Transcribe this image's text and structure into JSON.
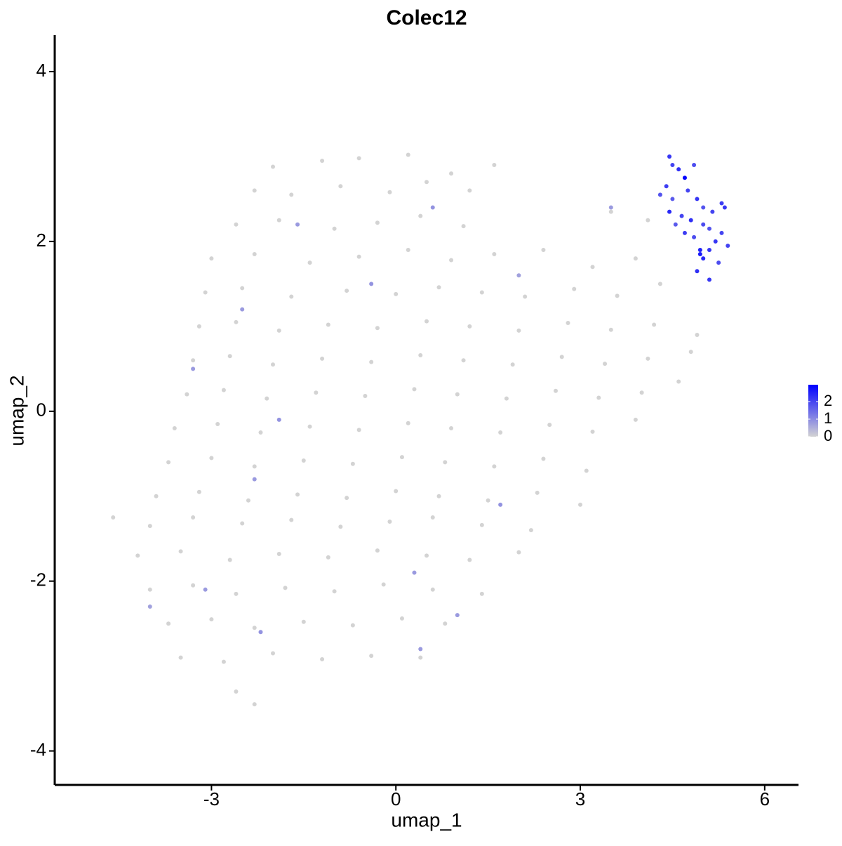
{
  "chart_data": {
    "type": "scatter",
    "title": "Colec12",
    "x_label": "umap_1",
    "y_label": "umap_2",
    "xlim": [
      -5.55,
      6.55
    ],
    "ylim": [
      -4.4,
      4.43
    ],
    "xticks": [
      -3,
      0,
      3,
      6
    ],
    "yticks": [
      -4,
      -2,
      0,
      2,
      4
    ],
    "color_low": "#d3d3d3",
    "color_high": "#0000ff",
    "color_lim": [
      0,
      2.96
    ],
    "color_ticks": [
      0,
      1,
      2
    ],
    "x": [
      -2.0,
      -1.2,
      -0.6,
      0.2,
      0.9,
      1.6,
      -2.3,
      -1.7,
      -0.9,
      -0.1,
      0.5,
      1.2,
      -2.6,
      -1.9,
      -1.0,
      -0.3,
      0.4,
      1.1,
      3.5,
      4.1,
      -3.0,
      -2.3,
      -1.4,
      -0.6,
      0.2,
      0.9,
      1.6,
      2.4,
      3.2,
      3.9,
      -3.1,
      -2.5,
      -1.7,
      -0.8,
      0.0,
      0.7,
      1.4,
      2.1,
      2.9,
      3.6,
      4.3,
      -3.2,
      -2.6,
      -1.9,
      -1.1,
      -0.3,
      0.5,
      1.2,
      2.0,
      2.8,
      3.5,
      4.2,
      4.9,
      -3.3,
      -2.7,
      -2.0,
      -1.2,
      -0.4,
      0.4,
      1.1,
      1.9,
      2.7,
      3.4,
      4.1,
      4.8,
      -3.4,
      -2.8,
      -2.1,
      -1.3,
      -0.5,
      0.3,
      1.0,
      1.8,
      2.6,
      3.3,
      4.0,
      4.6,
      -3.6,
      -2.9,
      -2.2,
      -1.4,
      -0.6,
      0.2,
      0.9,
      1.7,
      2.5,
      3.2,
      3.9,
      -3.7,
      -3.0,
      -2.3,
      -1.5,
      -0.7,
      0.1,
      0.8,
      1.6,
      2.4,
      3.1,
      -3.9,
      -3.2,
      -2.4,
      -1.6,
      -0.8,
      0.0,
      0.7,
      1.5,
      2.3,
      3.0,
      -4.6,
      -4.0,
      -3.3,
      -2.5,
      -1.7,
      -0.9,
      -0.1,
      0.6,
      1.4,
      2.2,
      -4.2,
      -3.5,
      -2.7,
      -1.9,
      -1.1,
      -0.3,
      0.5,
      1.2,
      2.0,
      -4.0,
      -3.3,
      -2.6,
      -1.8,
      -1.0,
      -0.2,
      0.6,
      1.4,
      -3.7,
      -3.0,
      -2.3,
      -1.5,
      -0.7,
      0.1,
      0.8,
      -3.5,
      -2.8,
      -2.0,
      -1.2,
      -0.4,
      0.4,
      -2.6,
      -2.3,
      -1.6,
      -0.4,
      -3.3,
      -1.9,
      0.3,
      -2.2,
      0.4,
      1.7,
      -2.3,
      2.0,
      1.0,
      -4.0,
      -2.5,
      0.6,
      3.5,
      -3.1,
      4.45,
      4.5,
      4.6,
      4.4,
      4.75,
      4.85,
      4.3,
      4.5,
      4.9,
      5.0,
      5.15,
      5.3,
      5.35,
      4.45,
      4.65,
      4.8,
      5.0,
      5.1,
      5.3,
      4.7,
      4.85,
      5.2,
      5.4,
      4.95,
      5.1,
      5.0,
      4.9,
      5.1,
      5.25,
      4.95,
      4.55,
      4.7
    ],
    "y": [
      2.88,
      2.95,
      2.98,
      3.02,
      2.8,
      2.9,
      2.6,
      2.55,
      2.65,
      2.58,
      2.7,
      2.6,
      2.2,
      2.25,
      2.15,
      2.22,
      2.3,
      2.18,
      2.35,
      2.25,
      1.8,
      1.85,
      1.75,
      1.82,
      1.9,
      1.78,
      1.85,
      1.9,
      1.7,
      1.8,
      1.4,
      1.45,
      1.35,
      1.42,
      1.38,
      1.46,
      1.4,
      1.35,
      1.44,
      1.36,
      1.5,
      1.0,
      1.05,
      0.95,
      1.02,
      0.98,
      1.06,
      1.0,
      0.95,
      1.04,
      0.96,
      1.02,
      0.9,
      0.6,
      0.65,
      0.55,
      0.62,
      0.58,
      0.66,
      0.6,
      0.55,
      0.64,
      0.56,
      0.62,
      0.7,
      0.2,
      0.25,
      0.15,
      0.22,
      0.18,
      0.26,
      0.2,
      0.15,
      0.24,
      0.16,
      0.22,
      0.35,
      -0.2,
      -0.15,
      -0.25,
      -0.18,
      -0.22,
      -0.14,
      -0.2,
      -0.25,
      -0.16,
      -0.24,
      -0.1,
      -0.6,
      -0.55,
      -0.65,
      -0.58,
      -0.62,
      -0.54,
      -0.6,
      -0.65,
      -0.56,
      -0.7,
      -1.0,
      -0.95,
      -1.05,
      -0.98,
      -1.02,
      -0.94,
      -1.0,
      -1.05,
      -0.96,
      -1.1,
      -1.25,
      -1.35,
      -1.25,
      -1.32,
      -1.28,
      -1.36,
      -1.3,
      -1.25,
      -1.34,
      -1.4,
      -1.7,
      -1.65,
      -1.75,
      -1.68,
      -1.72,
      -1.64,
      -1.7,
      -1.75,
      -1.66,
      -2.1,
      -2.05,
      -2.15,
      -2.08,
      -2.12,
      -2.04,
      -2.1,
      -2.15,
      -2.5,
      -2.45,
      -2.55,
      -2.48,
      -2.52,
      -2.44,
      -2.5,
      -2.9,
      -2.95,
      -2.85,
      -2.92,
      -2.88,
      -2.9,
      -3.3,
      -3.45,
      2.2,
      1.5,
      0.5,
      -0.1,
      -1.9,
      -2.6,
      -2.8,
      -1.1,
      -0.8,
      1.6,
      -2.4,
      -2.3,
      1.2,
      2.4,
      2.4,
      -2.1,
      3.0,
      2.9,
      2.85,
      2.65,
      2.6,
      2.9,
      2.55,
      2.5,
      2.5,
      2.4,
      2.35,
      2.45,
      2.4,
      2.35,
      2.3,
      2.25,
      2.2,
      2.15,
      2.1,
      2.1,
      2.05,
      2.0,
      1.95,
      1.9,
      1.9,
      1.8,
      1.65,
      1.55,
      1.75,
      1.85,
      2.2,
      2.75
    ],
    "values": [
      0,
      0,
      0,
      0,
      0,
      0,
      0,
      0,
      0,
      0,
      0,
      0,
      0,
      0,
      0,
      0,
      0,
      0,
      0,
      0,
      0,
      0,
      0,
      0,
      0,
      0,
      0,
      0,
      0,
      0,
      0,
      0,
      0,
      0,
      0,
      0,
      0,
      0,
      0,
      0,
      0,
      0,
      0,
      0,
      0,
      0,
      0,
      0,
      0,
      0,
      0,
      0,
      0,
      0,
      0,
      0,
      0,
      0,
      0,
      0,
      0,
      0,
      0,
      0,
      0,
      0,
      0,
      0,
      0,
      0,
      0,
      0,
      0,
      0,
      0,
      0,
      0,
      0,
      0,
      0,
      0,
      0,
      0,
      0,
      0,
      0,
      0,
      0,
      0,
      0,
      0,
      0,
      0,
      0,
      0,
      0,
      0,
      0,
      0,
      0,
      0,
      0,
      0,
      0,
      0,
      0,
      0,
      0,
      0,
      0,
      0,
      0,
      0,
      0,
      0,
      0,
      0,
      0,
      0,
      0,
      0,
      0,
      0,
      0,
      0,
      0,
      0,
      0,
      0,
      0,
      0,
      0,
      0,
      0,
      0,
      0,
      0,
      0,
      0,
      0,
      0,
      0,
      0,
      0,
      0,
      0,
      0,
      0,
      0,
      0,
      0.8,
      0.9,
      0.8,
      0.9,
      0.8,
      0.9,
      0.8,
      0.9,
      0.8,
      0.7,
      0.8,
      0.7,
      0.8,
      0.9,
      0.8,
      0.8,
      2.2,
      2.0,
      2.3,
      2.1,
      2.0,
      1.9,
      1.8,
      1.7,
      2.2,
      1.8,
      2.0,
      2.1,
      2.2,
      2.4,
      2.0,
      2.3,
      1.9,
      1.8,
      2.0,
      2.1,
      1.9,
      2.2,
      2.0,
      2.5,
      2.2,
      2.4,
      2.3,
      2.2,
      1.9,
      2.6,
      1.7,
      2.9
    ]
  }
}
